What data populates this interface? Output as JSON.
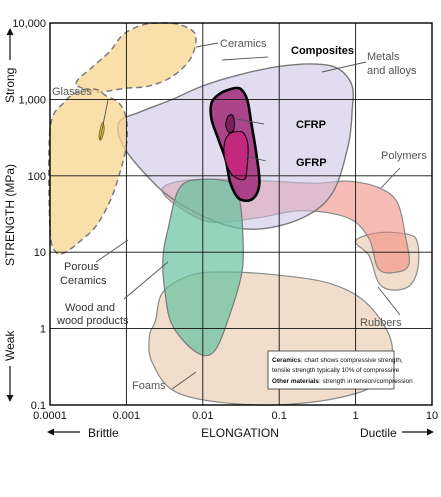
{
  "chart_data": {
    "type": "scatter",
    "title": "",
    "xlabel": "ELONGATION",
    "ylabel": "STRENGTH (MPa)",
    "x_scale": "log",
    "y_scale": "log",
    "xlim": [
      0.0001,
      10
    ],
    "ylim": [
      0.1,
      10000
    ],
    "x_ticks": [
      "0.0001",
      "0.001",
      "0.01",
      "0.1",
      "1",
      "10"
    ],
    "y_ticks": [
      "0.1",
      "1",
      "10",
      "100",
      "1,000",
      "10,000"
    ],
    "grid": true,
    "x_extremes": {
      "left": "Brittle",
      "right": "Ductile"
    },
    "y_extremes": {
      "top": "Strong",
      "bottom": "Weak"
    },
    "regions": [
      {
        "name": "Foams",
        "color": "#e8c7a8",
        "outline": "solid",
        "points": [
          [
            0.0024,
            1.25
          ],
          [
            0.002,
            0.8
          ],
          [
            0.0022,
            0.35
          ],
          [
            0.005,
            0.14
          ],
          [
            0.05,
            0.1
          ],
          [
            0.5,
            0.12
          ],
          [
            2.0,
            0.2
          ],
          [
            3.0,
            0.6
          ],
          [
            1.5,
            2.0
          ],
          [
            0.5,
            3.8
          ],
          [
            0.1,
            5.0
          ],
          [
            0.02,
            5.5
          ],
          [
            0.007,
            5.0
          ],
          [
            0.003,
            3.0
          ]
        ]
      },
      {
        "name": "Rubbers",
        "color": "#e8c7a8",
        "outline": "solid",
        "points": [
          [
            1.0,
            14
          ],
          [
            1.5,
            9
          ],
          [
            2.0,
            4
          ],
          [
            3.0,
            3.2
          ],
          [
            5.0,
            3.6
          ],
          [
            6.5,
            6
          ],
          [
            6.5,
            13
          ],
          [
            5.0,
            17
          ],
          [
            2.0,
            18
          ]
        ]
      },
      {
        "name": "Polymers",
        "color": "#f2857a",
        "outline": "solid",
        "points": [
          [
            0.004,
            45
          ],
          [
            0.003,
            70
          ],
          [
            0.006,
            87
          ],
          [
            0.02,
            90
          ],
          [
            0.08,
            85
          ],
          [
            0.3,
            80
          ],
          [
            0.8,
            85
          ],
          [
            2.0,
            70
          ],
          [
            3.5,
            45
          ],
          [
            4.5,
            16
          ],
          [
            5.0,
            7
          ],
          [
            3.5,
            5.5
          ],
          [
            2.0,
            6
          ],
          [
            1.5,
            15
          ],
          [
            0.8,
            28
          ],
          [
            0.2,
            35
          ],
          [
            0.05,
            28
          ],
          [
            0.012,
            25
          ]
        ]
      },
      {
        "name": "Metals and alloys",
        "color": "#c8bfe2",
        "outline": "solid",
        "points": [
          [
            0.0008,
            500
          ],
          [
            0.0016,
            700
          ],
          [
            0.004,
            1000
          ],
          [
            0.01,
            1500
          ],
          [
            0.03,
            2100
          ],
          [
            0.1,
            2700
          ],
          [
            0.3,
            2900
          ],
          [
            0.6,
            2500
          ],
          [
            0.9,
            1500
          ],
          [
            0.9,
            700
          ],
          [
            0.8,
            250
          ],
          [
            0.5,
            60
          ],
          [
            0.2,
            28
          ],
          [
            0.05,
            20
          ],
          [
            0.015,
            25
          ],
          [
            0.004,
            50
          ],
          [
            0.0017,
            110
          ],
          [
            0.0009,
            250
          ]
        ]
      },
      {
        "name": "Wood and wood products",
        "color": "#66c2a0",
        "outline": "solid",
        "points": [
          [
            0.0035,
            20
          ],
          [
            0.003,
            8
          ],
          [
            0.0032,
            3
          ],
          [
            0.004,
            1.1
          ],
          [
            0.008,
            0.5
          ],
          [
            0.014,
            0.5
          ],
          [
            0.023,
            1.6
          ],
          [
            0.033,
            6
          ],
          [
            0.033,
            22
          ],
          [
            0.03,
            50
          ],
          [
            0.025,
            80
          ],
          [
            0.01,
            90
          ],
          [
            0.005,
            70
          ]
        ]
      },
      {
        "name": "Ceramics",
        "color": "#f7d48e",
        "outline": "dashed",
        "points": [
          [
            0.00022,
            1600
          ],
          [
            0.00035,
            2600
          ],
          [
            0.0006,
            4200
          ],
          [
            0.0009,
            7000
          ],
          [
            0.0015,
            9200
          ],
          [
            0.0025,
            10000
          ],
          [
            0.005,
            9500
          ],
          [
            0.008,
            7000
          ],
          [
            0.007,
            3500
          ],
          [
            0.004,
            2000
          ],
          [
            0.002,
            1500
          ],
          [
            0.001,
            1400
          ],
          [
            0.0006,
            1300
          ],
          [
            0.0004,
            1250
          ]
        ]
      },
      {
        "name": "Porous Ceramics",
        "color": "#f7d48e",
        "outline": "dashed",
        "points": [
          [
            0.0001,
            400
          ],
          [
            0.0001,
            20
          ],
          [
            0.00012,
            10
          ],
          [
            0.00016,
            10
          ],
          [
            0.00025,
            14
          ],
          [
            0.0004,
            22
          ],
          [
            0.0006,
            45
          ],
          [
            0.0008,
            100
          ],
          [
            0.001,
            250
          ],
          [
            0.001,
            550
          ],
          [
            0.0008,
            900
          ],
          [
            0.00055,
            1100
          ],
          [
            0.0004,
            1350
          ],
          [
            0.00025,
            1300
          ],
          [
            0.00015,
            900
          ]
        ]
      },
      {
        "name": "Glasses",
        "color": "#f0c850",
        "outline": "solid",
        "points": [
          [
            0.00047,
            300
          ],
          [
            0.00051,
            400
          ],
          [
            0.00049,
            500
          ],
          [
            0.00045,
            390
          ],
          [
            0.00044,
            310
          ]
        ]
      },
      {
        "name": "Composites",
        "color": "#a6337f",
        "outline": "solid",
        "points": [
          [
            0.02,
            1300
          ],
          [
            0.016,
            1150
          ],
          [
            0.013,
            900
          ],
          [
            0.013,
            550
          ],
          [
            0.016,
            300
          ],
          [
            0.02,
            160
          ],
          [
            0.023,
            80
          ],
          [
            0.03,
            50
          ],
          [
            0.045,
            50
          ],
          [
            0.055,
            80
          ],
          [
            0.05,
            200
          ],
          [
            0.043,
            500
          ],
          [
            0.038,
            1000
          ],
          [
            0.03,
            1400
          ]
        ]
      },
      {
        "name": "CFRP",
        "color": "#7e1d60",
        "outline": "solid",
        "points": [
          [
            0.023,
            630
          ],
          [
            0.021,
            580
          ],
          [
            0.02,
            450
          ],
          [
            0.022,
            370
          ],
          [
            0.025,
            390
          ],
          [
            0.026,
            470
          ],
          [
            0.025,
            600
          ]
        ]
      },
      {
        "name": "GFRP",
        "color": "#c2287e",
        "outline": "solid",
        "points": [
          [
            0.03,
            380
          ],
          [
            0.022,
            350
          ],
          [
            0.019,
            250
          ],
          [
            0.02,
            150
          ],
          [
            0.025,
            100
          ],
          [
            0.035,
            90
          ],
          [
            0.038,
            130
          ],
          [
            0.039,
            250
          ],
          [
            0.035,
            350
          ]
        ]
      }
    ],
    "labels": [
      {
        "text": "Ceramics",
        "color": "#555555"
      },
      {
        "text": "Composites",
        "color": "#000000"
      },
      {
        "text": "Metals",
        "color": "#555555"
      },
      {
        "text": "and alloys",
        "color": "#555555"
      },
      {
        "text": "Glasses",
        "color": "#555555"
      },
      {
        "text": "CFRP",
        "color": "#000000"
      },
      {
        "text": "GFRP",
        "color": "#000000"
      },
      {
        "text": "Polymers",
        "color": "#555555"
      },
      {
        "text": "Porous",
        "color": "#333333"
      },
      {
        "text": "Ceramics",
        "color": "#333333"
      },
      {
        "text": "Wood and",
        "color": "#333333"
      },
      {
        "text": "wood products",
        "color": "#333333"
      },
      {
        "text": "Rubbers",
        "color": "#555555"
      },
      {
        "text": "Foams",
        "color": "#555555"
      }
    ],
    "note": {
      "line1_bold": "Ceramics",
      "line1_rest": ": chart shows compressive strength,",
      "line2": "tensile strength typically 10% of compressive",
      "line3_bold": "Other materials",
      "line3_rest": ": strength in tension/compression"
    }
  }
}
